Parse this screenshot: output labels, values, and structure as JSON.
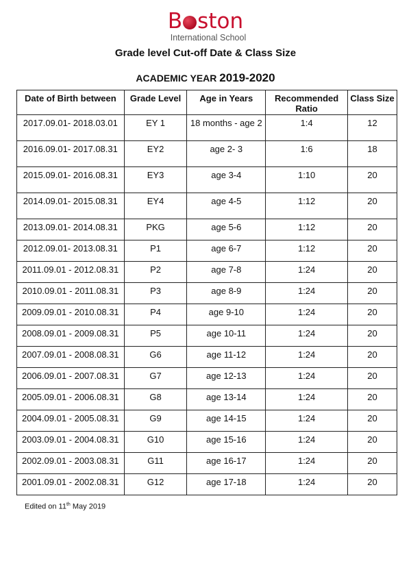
{
  "logo": {
    "word_prefix": "B",
    "word_suffix": "ston",
    "subtitle": "International School",
    "brand_color": "#c8102e"
  },
  "title": "Grade level Cut-off Date & Class Size",
  "academic_year": {
    "label": "ACADEMIC YEAR",
    "value": "2019-2020"
  },
  "table": {
    "headers": [
      "Date of Birth between",
      "Grade Level",
      "Age in Years",
      "Recommended Ratio",
      "Class Size"
    ],
    "rows": [
      [
        "2017.09.01- 2018.03.01",
        "EY 1",
        "18 months - age 2",
        "1:4",
        "12"
      ],
      [
        "2016.09.01- 2017.08.31",
        "EY2",
        "age 2- 3",
        "1:6",
        "18"
      ],
      [
        "2015.09.01- 2016.08.31",
        "EY3",
        "age 3-4",
        "1:10",
        "20"
      ],
      [
        "2014.09.01- 2015.08.31",
        "EY4",
        "age 4-5",
        "1:12",
        "20"
      ],
      [
        "2013.09.01- 2014.08.31",
        "PKG",
        "age 5-6",
        "1:12",
        "20"
      ],
      [
        "2012.09.01- 2013.08.31",
        "P1",
        "age 6-7",
        "1:12",
        "20"
      ],
      [
        "2011.09.01 - 2012.08.31",
        "P2",
        "age 7-8",
        "1:24",
        "20"
      ],
      [
        "2010.09.01 - 2011.08.31",
        "P3",
        "age 8-9",
        "1:24",
        "20"
      ],
      [
        "2009.09.01 - 2010.08.31",
        "P4",
        "age 9-10",
        "1:24",
        "20"
      ],
      [
        "2008.09.01 - 2009.08.31",
        "P5",
        "age 10-11",
        "1:24",
        "20"
      ],
      [
        "2007.09.01 - 2008.08.31",
        "G6",
        "age 11-12",
        "1:24",
        "20"
      ],
      [
        "2006.09.01 - 2007.08.31",
        "G7",
        "age 12-13",
        "1:24",
        "20"
      ],
      [
        "2005.09.01 - 2006.08.31",
        "G8",
        "age 13-14",
        "1:24",
        "20"
      ],
      [
        "2004.09.01 - 2005.08.31",
        "G9",
        "age 14-15",
        "1:24",
        "20"
      ],
      [
        "2003.09.01 - 2004.08.31",
        "G10",
        "age 15-16",
        "1:24",
        "20"
      ],
      [
        "2002.09.01 - 2003.08.31",
        "G11",
        "age 16-17",
        "1:24",
        "20"
      ],
      [
        "2001.09.01 - 2002.08.31",
        "G12",
        "age 17-18",
        "1:24",
        "20"
      ]
    ]
  },
  "footer": {
    "prefix": "Edited on 11",
    "sup": "th",
    "suffix": " May 2019"
  }
}
